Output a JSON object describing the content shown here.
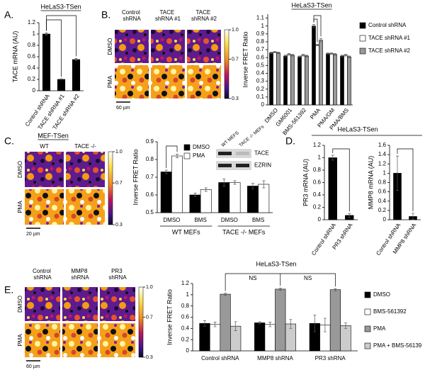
{
  "panel_labels": [
    "A.",
    "B.",
    "C.",
    "D.",
    "E."
  ],
  "image_panels": [
    {
      "columns": [
        "Control shRNA",
        "TACE shRNA #1",
        "TACE shRNA #2"
      ],
      "rows": [
        "DMSO",
        "PMA"
      ],
      "scale_bar": "60 µm",
      "colorbar": {
        "lim": [
          0.3,
          1
        ],
        "ticks": [
          {
            "value": 1,
            "label": "1.0"
          },
          {
            "value": 0.7,
            "label": "0.7"
          },
          {
            "value": 0.3,
            "label": "0.3"
          }
        ]
      }
    },
    {
      "title": "MEF-TSen",
      "columns": [
        "WT",
        "TACE -/-"
      ],
      "rows": [
        "DMSO",
        "PMA"
      ],
      "scale_bar": "20 µm",
      "colorbar": {
        "lim": [
          0.3,
          1
        ],
        "ticks": [
          {
            "value": 1,
            "label": "1.0"
          },
          {
            "value": 0.7,
            "label": "0.7"
          },
          {
            "value": 0.3,
            "label": "0.3"
          }
        ]
      }
    },
    {
      "columns": [
        "Control shRNA",
        "MMP8 shRNA",
        "PR3 shRNA"
      ],
      "rows": [
        "DMSO",
        "PMA"
      ],
      "scale_bar": "60 µm",
      "colorbar": {
        "lim": [
          0.3,
          1
        ],
        "ticks": [
          {
            "value": 1,
            "label": "1.0"
          },
          {
            "value": 0.7,
            "label": "0.7"
          },
          {
            "value": 0.3,
            "label": "0.3"
          }
        ]
      }
    }
  ],
  "blot": {
    "columns": [
      "WT MEFS",
      "TACE -/- MEFs"
    ],
    "rows": [
      "TACE",
      "EZRIN"
    ]
  },
  "panel_d_title": "HeLaS3-TSen",
  "chart_data": [
    {
      "type": "bar",
      "title": "HeLaS3-TSen",
      "ylabel": "TACE mRNA (AU)",
      "categories": [
        "Control shRNA",
        "TACE shRNA #1",
        "TACE shRNA #2"
      ],
      "values": [
        1,
        0.2,
        0.55
      ],
      "errors": [
        0.02,
        0.01,
        0.02
      ],
      "color": "#000000",
      "ylim": [
        0,
        1.2
      ],
      "yticks": [
        0,
        0.2,
        0.4,
        0.6,
        0.8,
        1,
        1.2
      ]
    },
    {
      "type": "bar",
      "title": "HeLaS3-TSen",
      "ylabel": "Inverse FRET Ratio",
      "categories": [
        "DMSO",
        "GM6001",
        "BMS-561392",
        "PMA",
        "PMA/GM",
        "PMA/BMS"
      ],
      "series": [
        {
          "name": "Control shRNA",
          "color": "#000000",
          "values": [
            0.66,
            0.62,
            0.61,
            1.0,
            0.65,
            0.62
          ],
          "errors": [
            0.01,
            0.01,
            0.01,
            0.02,
            0.01,
            0.01
          ]
        },
        {
          "name": "TACE shRNA #1",
          "color": "#ffffff",
          "values": [
            0.67,
            0.64,
            0.63,
            0.76,
            0.65,
            0.63
          ],
          "errors": [
            0.01,
            0.01,
            0.01,
            0.01,
            0.01,
            0.01
          ]
        },
        {
          "name": "TACE shRNA #2",
          "color": "#999999",
          "values": [
            0.66,
            0.63,
            0.62,
            0.82,
            0.64,
            0.61
          ],
          "errors": [
            0.01,
            0.01,
            0.01,
            0.02,
            0.01,
            0.01
          ]
        }
      ],
      "ylim": [
        0,
        1.15
      ],
      "yticks": [
        0,
        0.1,
        0.2,
        0.3,
        0.4,
        0.5,
        0.6,
        0.7,
        0.8,
        0.9,
        1,
        1.1
      ],
      "legend": "right"
    },
    {
      "type": "bar",
      "ylabel": "Inverse FRET Ratio",
      "categories": [
        "DMSO",
        "BMS",
        "DMSO",
        "BMS"
      ],
      "groups": [
        "WT MEFs",
        "TACE -/- MEFs"
      ],
      "series": [
        {
          "name": "DMSO",
          "color": "#000000",
          "values": [
            0.73,
            0.6,
            0.67,
            0.65
          ],
          "errors": [
            0.01,
            0.01,
            0.02,
            0.015
          ]
        },
        {
          "name": "PMA",
          "color": "#ffffff",
          "values": [
            0.82,
            0.63,
            0.67,
            0.66
          ],
          "errors": [
            0.01,
            0.01,
            0.01,
            0.02
          ]
        }
      ],
      "ylim": [
        0.5,
        0.9
      ],
      "yticks": [
        0.5,
        0.6,
        0.7,
        0.8,
        0.9
      ],
      "legend": "upper left"
    },
    {
      "type": "bar",
      "ylabel": "PR3  mRNA (AU)",
      "categories": [
        "Control shRNA",
        "PR3 shRNA"
      ],
      "values": [
        1,
        0.07
      ],
      "errors": [
        0.04,
        0.03
      ],
      "color": "#000000",
      "ylim": [
        0,
        1.2
      ],
      "yticks": [
        0,
        0.2,
        0.4,
        0.6,
        0.8,
        1,
        1.2
      ]
    },
    {
      "type": "bar",
      "ylabel": "MMP8 mRNA (AU)",
      "categories": [
        "Control shRNA",
        "MMP8 shRNA"
      ],
      "values": [
        1,
        0.07
      ],
      "errors": [
        0.37,
        0.07
      ],
      "color": "#000000",
      "ylim": [
        0,
        1.6
      ],
      "yticks": [
        0,
        0.2,
        0.4,
        0.6,
        0.8,
        1,
        1.2,
        1.4,
        1.6
      ]
    },
    {
      "type": "bar",
      "title": "HeLaS3-TSen",
      "ylabel": "Inverse FRET Ratio",
      "categories": [
        "Control shRNA",
        "MMP8 shRNA",
        "PR3 shRNA"
      ],
      "series": [
        {
          "name": "DMSO",
          "color": "#000000",
          "values": [
            0.49,
            0.5,
            0.49
          ],
          "errors": [
            0.05,
            0.02,
            0.15
          ]
        },
        {
          "name": "BMS-561392",
          "color": "#ffffff",
          "values": [
            0.47,
            0.47,
            0.46
          ],
          "errors": [
            0.04,
            0.04,
            0.12
          ]
        },
        {
          "name": "PMA",
          "color": "#999999",
          "values": [
            1.01,
            1.1,
            1.09
          ],
          "errors": [
            0.02,
            0.02,
            0.02
          ]
        },
        {
          "name": "PMA + BMS-56139",
          "color": "#cccccc",
          "values": [
            0.44,
            0.48,
            0.45
          ],
          "errors": [
            0.08,
            0.08,
            0.05
          ]
        }
      ],
      "ylim": [
        0,
        1.2
      ],
      "yticks": [
        0,
        0.2,
        0.4,
        0.6,
        0.8,
        1,
        1.2
      ],
      "legend": "right",
      "annotations": [
        "NS",
        "NS"
      ]
    }
  ]
}
